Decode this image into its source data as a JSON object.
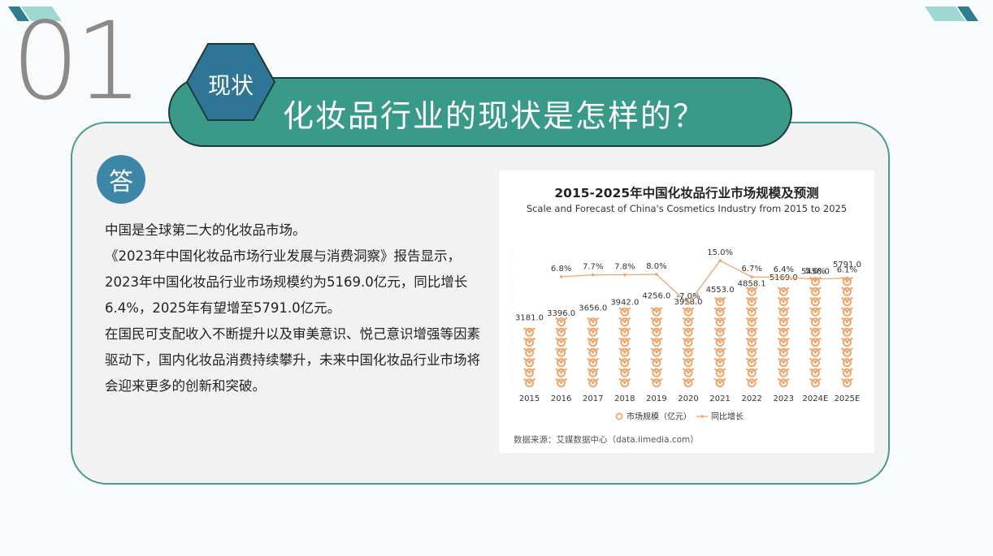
{
  "section_number": "01",
  "badge_label": "现状",
  "heading": "化妆品行业的现状是怎样的？",
  "answer_label": "答",
  "paragraphs": [
    "中国是全球第二大的化妆品市场。",
    "《2023年中国化妆品市场行业发展与消费洞察》报告显示，2023年中国化妆品行业市场规模约为5169.0亿元，同比增长6.4%，2025年有望增至5791.0亿元。",
    "在国民可支配收入不断提升以及审美意识、悦己意识增强等因素驱动下，国内化妆品消费持续攀升，未来中国化妆品行业市场将会迎来更多的创新和突破。"
  ],
  "colors": {
    "teal": "#3a9a8a",
    "blue": "#3d86a6",
    "bar": "#f0a56a",
    "line": "#f0a56a"
  },
  "chart_data": {
    "type": "bar",
    "title": "2015-2025年中国化妆品行业市场规模及预测",
    "subtitle": "Scale and Forecast of China's Cosmetics Industry from 2015 to 2025",
    "categories": [
      "2015",
      "2016",
      "2017",
      "2018",
      "2019",
      "2020",
      "2021",
      "2022",
      "2023",
      "2024E",
      "2025E"
    ],
    "series": [
      {
        "name": "市场规模（亿元）",
        "type": "bar",
        "values": [
          3181.0,
          3396.0,
          3656.0,
          3942.0,
          4256.0,
          3958.0,
          4553.0,
          4858.1,
          5169.0,
          5458.0,
          5791.0
        ],
        "labels": [
          "3181.0",
          "3396.0",
          "3656.0",
          "3942.0",
          "4256.0",
          "3958.0",
          "4553.0",
          "4858.1",
          "5169.0",
          "5458.0",
          "5791.0"
        ]
      },
      {
        "name": "同比增长",
        "type": "line",
        "values": [
          null,
          6.8,
          7.7,
          7.8,
          8.0,
          -7.0,
          15.0,
          6.7,
          6.4,
          5.6,
          6.1
        ],
        "labels": [
          "",
          "6.8%",
          "7.7%",
          "7.8%",
          "8.0%",
          "-7.0%",
          "15.0%",
          "6.7%",
          "6.4%",
          "5.6%",
          "6.1%"
        ]
      }
    ],
    "ylim": [
      0,
      6000
    ],
    "grid": false,
    "legend_position": "bottom",
    "source": "数据来源：艾媒数据中心（data.iimedia.com）"
  }
}
